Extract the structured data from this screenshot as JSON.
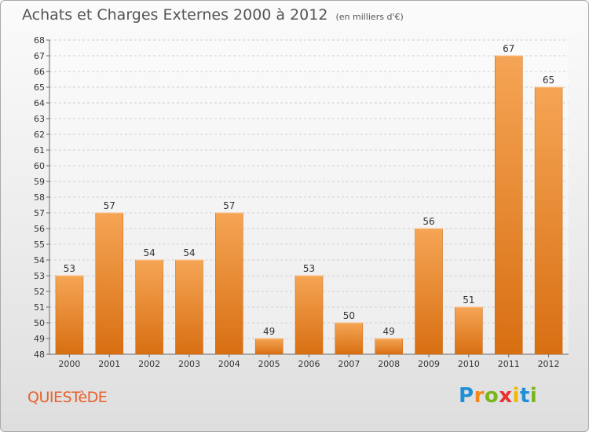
{
  "title": "Achats et Charges Externes 2000 à 2012",
  "subtitle": "(en milliers d'€)",
  "location": "QUIESTèDE",
  "logo": {
    "letters": [
      "P",
      "r",
      "o",
      "x",
      "i",
      "t",
      "i"
    ],
    "colors": [
      "#1f8fd6",
      "#f08a1c",
      "#7ab51d",
      "#e8312f",
      "#f2b705",
      "#1f8fd6",
      "#7ab51d"
    ]
  },
  "colors": {
    "bar_top": "#f5a555",
    "bar_bottom": "#d86f12",
    "location": "#e8612c"
  },
  "chart_data": {
    "type": "bar",
    "categories": [
      "2000",
      "2001",
      "2002",
      "2003",
      "2004",
      "2005",
      "2006",
      "2007",
      "2008",
      "2009",
      "2010",
      "2011",
      "2012"
    ],
    "values": [
      53,
      57,
      54,
      54,
      57,
      49,
      53,
      50,
      49,
      56,
      51,
      67,
      65
    ],
    "ylim": [
      48,
      68
    ],
    "ytick_step": 1,
    "grid": true,
    "value_labels": true
  }
}
